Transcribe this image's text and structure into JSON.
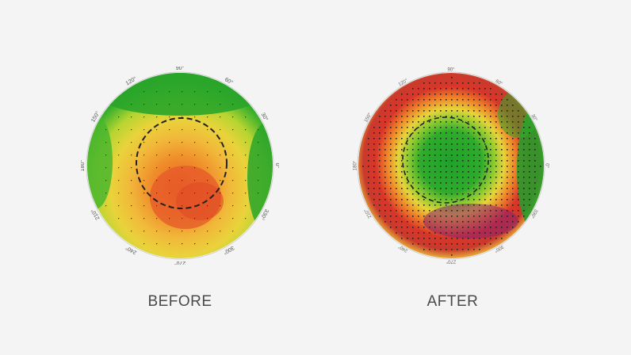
{
  "panels": [
    {
      "label": "BEFORE",
      "ring_labels": [
        "90°",
        "120°",
        "60°",
        "150°",
        "30°",
        "180°",
        "0°",
        "210°",
        "330°",
        "240°",
        "300°",
        "270°"
      ]
    },
    {
      "label": "AFTER",
      "ring_labels": [
        "90°",
        "120°",
        "60°",
        "150°",
        "30°",
        "180°",
        "0°",
        "210°",
        "330°",
        "240°",
        "300°",
        "270°"
      ]
    }
  ],
  "colors": {
    "background": "#f4f4f4",
    "green": "#1fa12a",
    "yellow_green": "#b6d531",
    "yellow": "#f1d53a",
    "orange": "#ef8a2a",
    "red": "#d9362a",
    "purple": "#7b1c80",
    "caption": "#4a4a4a"
  },
  "icons": [
    "dashed-circle-outline"
  ]
}
